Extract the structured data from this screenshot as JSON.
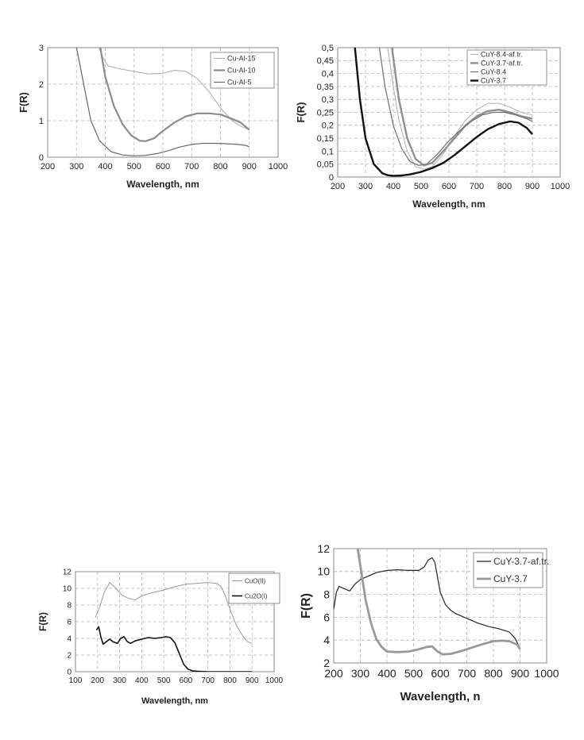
{
  "chart_data": [
    {
      "type": "line",
      "xlabel": "Wavelength, nm",
      "ylabel": "F(R)",
      "xlim": [
        200,
        1000
      ],
      "ylim": [
        0,
        3
      ],
      "xticks": [
        200,
        300,
        400,
        500,
        600,
        700,
        800,
        900,
        1000
      ],
      "yticks": [
        0,
        1,
        2,
        3
      ],
      "grid": true,
      "legend_position": "top-right",
      "series": [
        {
          "name": "Cu-Al-15",
          "color": "#aaaaaa",
          "width": 1.0,
          "x": [
            378,
            390,
            410,
            450,
            500,
            550,
            600,
            640,
            680,
            720,
            760,
            800,
            840,
            870,
            900
          ],
          "y": [
            3.0,
            2.75,
            2.5,
            2.42,
            2.35,
            2.28,
            2.3,
            2.38,
            2.35,
            2.15,
            1.8,
            1.35,
            1.0,
            0.85,
            0.75
          ]
        },
        {
          "name": "Cu-Al-10",
          "color": "#8c8c8c",
          "width": 2.2,
          "x": [
            383,
            400,
            430,
            460,
            490,
            520,
            540,
            570,
            600,
            640,
            680,
            720,
            760,
            800,
            840,
            870,
            900
          ],
          "y": [
            3.0,
            2.2,
            1.4,
            0.9,
            0.6,
            0.45,
            0.44,
            0.52,
            0.72,
            0.95,
            1.12,
            1.2,
            1.2,
            1.17,
            1.05,
            0.95,
            0.75
          ]
        },
        {
          "name": "Cu-Al-5",
          "color": "#666666",
          "width": 1.2,
          "x": [
            300,
            320,
            350,
            380,
            420,
            460,
            500,
            540,
            580,
            620,
            660,
            700,
            740,
            780,
            820,
            860,
            890,
            900
          ],
          "y": [
            3.0,
            2.2,
            1.0,
            0.45,
            0.15,
            0.06,
            0.04,
            0.05,
            0.1,
            0.18,
            0.28,
            0.35,
            0.38,
            0.38,
            0.37,
            0.35,
            0.32,
            0.28
          ]
        }
      ]
    },
    {
      "type": "line",
      "xlabel": "Wavelength, nm",
      "ylabel": "F(R)",
      "xlim": [
        200,
        1000
      ],
      "ylim": [
        0,
        0.5
      ],
      "xticks": [
        200,
        300,
        400,
        500,
        600,
        700,
        800,
        900,
        1000
      ],
      "yticks": [
        "0",
        "0,05",
        "0,1",
        "0,15",
        "0,2",
        "0,25",
        "0,3",
        "0,35",
        "0,4",
        "0,45",
        "0,5"
      ],
      "grid": true,
      "legend_position": "top-right",
      "series": [
        {
          "name": "CuY-8.4-af.tr.",
          "color": "#b0b0b0",
          "width": 1.0,
          "x": [
            380,
            400,
            420,
            450,
            480,
            510,
            540,
            580,
            620,
            660,
            700,
            740,
            780,
            820,
            860,
            900
          ],
          "y": [
            0.5,
            0.35,
            0.22,
            0.1,
            0.04,
            0.03,
            0.04,
            0.09,
            0.16,
            0.22,
            0.26,
            0.285,
            0.285,
            0.27,
            0.25,
            0.24
          ]
        },
        {
          "name": "CuY-3.7-af.tr.",
          "color": "#8f8f8f",
          "width": 2.4,
          "x": [
            395,
            420,
            450,
            480,
            510,
            540,
            580,
            620,
            660,
            700,
            740,
            780,
            820,
            860,
            900
          ],
          "y": [
            0.5,
            0.3,
            0.15,
            0.07,
            0.045,
            0.055,
            0.1,
            0.15,
            0.2,
            0.235,
            0.255,
            0.26,
            0.25,
            0.235,
            0.225
          ]
        },
        {
          "name": "CuY-8.4",
          "color": "#707070",
          "width": 1.2,
          "x": [
            350,
            370,
            400,
            430,
            460,
            490,
            520,
            560,
            600,
            640,
            680,
            720,
            760,
            800,
            840,
            880,
            900
          ],
          "y": [
            0.5,
            0.35,
            0.2,
            0.11,
            0.06,
            0.045,
            0.05,
            0.09,
            0.14,
            0.18,
            0.215,
            0.24,
            0.25,
            0.25,
            0.24,
            0.225,
            0.215
          ]
        },
        {
          "name": "CuY-3.7",
          "color": "#111111",
          "width": 2.4,
          "x": [
            262,
            280,
            300,
            330,
            360,
            380,
            400,
            430,
            460,
            500,
            540,
            580,
            620,
            660,
            700,
            740,
            780,
            820,
            850,
            880,
            900
          ],
          "y": [
            0.5,
            0.3,
            0.15,
            0.05,
            0.015,
            0.007,
            0.005,
            0.006,
            0.01,
            0.02,
            0.035,
            0.055,
            0.085,
            0.12,
            0.155,
            0.185,
            0.205,
            0.215,
            0.21,
            0.19,
            0.165
          ]
        }
      ]
    },
    {
      "type": "line",
      "xlabel": "Wavelength, nm",
      "ylabel": "F(R)",
      "xlim": [
        100,
        1000
      ],
      "ylim": [
        0,
        12
      ],
      "xticks": [
        100,
        200,
        300,
        400,
        500,
        600,
        700,
        800,
        900,
        1000
      ],
      "yticks": [
        0,
        2,
        4,
        6,
        8,
        10,
        12
      ],
      "grid": true,
      "legend_position": "top-right",
      "series": [
        {
          "name": "CuO(II)",
          "color": "#999999",
          "width": 1.0,
          "x": [
            190,
            210,
            230,
            255,
            280,
            310,
            340,
            370,
            400,
            450,
            500,
            550,
            600,
            650,
            700,
            740,
            760,
            780,
            800,
            830,
            860,
            880,
            900
          ],
          "y": [
            6.5,
            7.8,
            9.5,
            10.7,
            10.1,
            9.2,
            8.8,
            8.6,
            9.1,
            9.5,
            9.8,
            10.2,
            10.5,
            10.6,
            10.7,
            10.6,
            10.2,
            9.0,
            7.5,
            5.5,
            4.2,
            3.6,
            3.4
          ]
        },
        {
          "name": "Cu2O(I)",
          "color": "#111111",
          "width": 1.6,
          "x": [
            195,
            205,
            215,
            225,
            240,
            255,
            270,
            290,
            305,
            320,
            335,
            350,
            370,
            400,
            430,
            460,
            490,
            510,
            530,
            550,
            570,
            590,
            610,
            630,
            660,
            700,
            800,
            900
          ],
          "y": [
            5.0,
            5.4,
            4.2,
            3.3,
            3.6,
            3.9,
            3.6,
            3.4,
            4.0,
            4.2,
            3.6,
            3.4,
            3.7,
            3.9,
            4.1,
            4.0,
            4.1,
            4.2,
            4.1,
            3.5,
            2.2,
            0.9,
            0.3,
            0.1,
            0.05,
            0.0,
            0.0,
            0.0
          ]
        }
      ]
    },
    {
      "type": "line",
      "xlabel": "Wavelength, n",
      "ylabel": "F(R)",
      "xlim": [
        200,
        1000
      ],
      "ylim": [
        2,
        12
      ],
      "xticks": [
        200,
        300,
        400,
        500,
        600,
        700,
        800,
        900,
        1000
      ],
      "yticks": [
        2,
        4,
        6,
        8,
        10,
        12
      ],
      "grid": true,
      "legend_position": "top-right",
      "series": [
        {
          "name": "CuY-3.7-af.tr.",
          "color": "#222222",
          "width": 1.2,
          "x": [
            200,
            210,
            220,
            240,
            260,
            280,
            300,
            330,
            360,
            400,
            440,
            480,
            520,
            540,
            555,
            570,
            580,
            590,
            600,
            620,
            640,
            660,
            700,
            740,
            780,
            820,
            860,
            880,
            900
          ],
          "y": [
            6.7,
            8.2,
            8.7,
            8.5,
            8.3,
            8.9,
            9.3,
            9.6,
            9.9,
            10.1,
            10.15,
            10.1,
            10.1,
            10.4,
            11.0,
            11.2,
            10.8,
            9.5,
            8.2,
            7.1,
            6.6,
            6.3,
            5.9,
            5.5,
            5.2,
            5.0,
            4.7,
            4.2,
            3.3
          ]
        },
        {
          "name": "CuY-3.7",
          "color": "#999999",
          "width": 2.8,
          "x": [
            290,
            300,
            320,
            340,
            360,
            380,
            400,
            440,
            480,
            520,
            550,
            570,
            590,
            610,
            640,
            680,
            720,
            760,
            800,
            830,
            860,
            890,
            900
          ],
          "y": [
            12.0,
            10.5,
            7.5,
            5.5,
            4.1,
            3.4,
            3.0,
            2.95,
            3.0,
            3.2,
            3.4,
            3.45,
            3.0,
            2.75,
            2.8,
            3.05,
            3.35,
            3.65,
            3.9,
            3.95,
            3.9,
            3.6,
            3.2
          ]
        }
      ]
    }
  ]
}
